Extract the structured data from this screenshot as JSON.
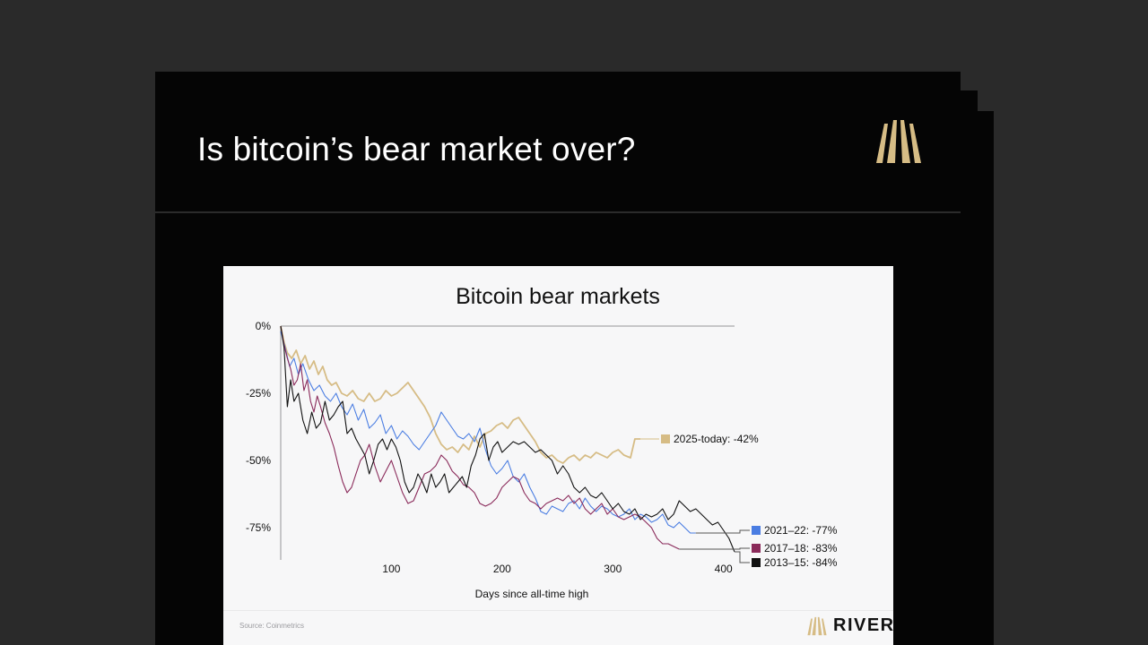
{
  "slide": {
    "title": "Is bitcoin’s bear market over?",
    "accent_color": "#d6bc85"
  },
  "chart_card": {
    "source": "Source: Coinmetrics",
    "brand": "RIVER"
  },
  "chart_data": {
    "type": "line",
    "title": "Bitcoin bear markets",
    "xlabel": "Days since all-time high",
    "ylabel": "",
    "xlim": [
      0,
      410
    ],
    "ylim": [
      -87,
      0
    ],
    "x_ticks": [
      100,
      200,
      300,
      400
    ],
    "x_tick_labels": [
      "100",
      "200",
      "300",
      "400"
    ],
    "y_ticks": [
      0,
      -25,
      -50,
      -75
    ],
    "y_tick_labels": [
      "0%",
      "-25%",
      "-50%",
      "-75%"
    ],
    "grid": false,
    "series": [
      {
        "name": "2025-today: -42%",
        "color": "#d6bc85",
        "x": [
          0,
          3,
          6,
          10,
          14,
          18,
          22,
          26,
          30,
          34,
          38,
          42,
          46,
          50,
          55,
          60,
          65,
          70,
          75,
          80,
          85,
          90,
          95,
          100,
          105,
          110,
          115,
          120,
          125,
          130,
          135,
          140,
          145,
          150,
          155,
          160,
          165,
          170,
          175,
          180,
          185,
          190,
          195,
          200,
          205,
          210,
          215,
          220,
          225,
          230,
          235,
          240,
          245,
          250,
          255,
          260,
          265,
          270,
          275,
          280,
          285,
          290,
          295,
          300,
          305,
          310,
          316,
          320,
          325
        ],
        "values": [
          0,
          -6,
          -10,
          -12,
          -9,
          -14,
          -11,
          -16,
          -13,
          -18,
          -15,
          -20,
          -22,
          -21,
          -25,
          -26,
          -24,
          -27,
          -28,
          -25,
          -28,
          -27,
          -24,
          -26,
          -25,
          -23,
          -21,
          -24,
          -27,
          -30,
          -34,
          -40,
          -44,
          -46,
          -45,
          -47,
          -44,
          -46,
          -41,
          -45,
          -40,
          -39,
          -37,
          -36,
          -38,
          -35,
          -34,
          -37,
          -40,
          -43,
          -47,
          -49,
          -48,
          -50,
          -51,
          -49,
          -48,
          -50,
          -48,
          -49,
          -47,
          -48,
          -49,
          -47,
          -46,
          -48,
          -49,
          -42,
          -42
        ]
      },
      {
        "name": "2021–22: -77%",
        "color": "#4a7de2",
        "x": [
          0,
          4,
          8,
          12,
          16,
          20,
          25,
          30,
          35,
          40,
          45,
          50,
          55,
          60,
          65,
          70,
          75,
          80,
          85,
          90,
          95,
          100,
          105,
          110,
          115,
          120,
          125,
          130,
          135,
          140,
          145,
          150,
          155,
          160,
          165,
          170,
          175,
          180,
          185,
          190,
          195,
          200,
          205,
          210,
          215,
          220,
          225,
          230,
          235,
          240,
          245,
          250,
          255,
          260,
          265,
          270,
          275,
          280,
          285,
          290,
          295,
          300,
          305,
          310,
          315,
          320,
          325,
          330,
          335,
          340,
          345,
          350,
          355,
          360,
          365,
          370,
          375
        ],
        "values": [
          -2,
          -8,
          -15,
          -12,
          -18,
          -14,
          -20,
          -24,
          -22,
          -26,
          -28,
          -25,
          -30,
          -33,
          -29,
          -35,
          -31,
          -38,
          -36,
          -33,
          -40,
          -37,
          -42,
          -39,
          -41,
          -44,
          -46,
          -43,
          -40,
          -37,
          -32,
          -35,
          -38,
          -41,
          -42,
          -40,
          -43,
          -38,
          -46,
          -52,
          -55,
          -53,
          -50,
          -56,
          -58,
          -55,
          -60,
          -64,
          -69,
          -70,
          -67,
          -68,
          -69,
          -66,
          -65,
          -68,
          -64,
          -67,
          -69,
          -67,
          -68,
          -70,
          -71,
          -70,
          -68,
          -72,
          -70,
          -71,
          -73,
          -72,
          -70,
          -74,
          -75,
          -73,
          -75,
          -77,
          -77
        ]
      },
      {
        "name": "2017–18: -83%",
        "color": "#8a2a5a",
        "x": [
          0,
          3,
          6,
          9,
          12,
          15,
          18,
          21,
          24,
          27,
          30,
          33,
          36,
          40,
          44,
          48,
          52,
          56,
          60,
          64,
          68,
          72,
          76,
          80,
          85,
          90,
          95,
          100,
          105,
          110,
          115,
          120,
          125,
          130,
          135,
          140,
          145,
          150,
          155,
          160,
          165,
          170,
          175,
          180,
          185,
          190,
          195,
          200,
          205,
          210,
          215,
          220,
          225,
          230,
          235,
          240,
          245,
          250,
          255,
          260,
          265,
          270,
          275,
          280,
          285,
          290,
          295,
          300,
          305,
          310,
          315,
          320,
          325,
          330,
          335,
          340,
          345,
          350,
          355,
          360
        ],
        "values": [
          0,
          -7,
          -12,
          -16,
          -22,
          -20,
          -14,
          -24,
          -20,
          -28,
          -32,
          -26,
          -30,
          -36,
          -40,
          -45,
          -52,
          -58,
          -62,
          -60,
          -55,
          -50,
          -48,
          -44,
          -52,
          -58,
          -54,
          -50,
          -56,
          -62,
          -66,
          -65,
          -60,
          -55,
          -54,
          -52,
          -48,
          -50,
          -54,
          -56,
          -59,
          -60,
          -62,
          -66,
          -67,
          -66,
          -64,
          -60,
          -58,
          -56,
          -57,
          -62,
          -65,
          -66,
          -68,
          -66,
          -65,
          -64,
          -65,
          -63,
          -66,
          -64,
          -68,
          -70,
          -68,
          -66,
          -70,
          -68,
          -71,
          -72,
          -71,
          -70,
          -71,
          -73,
          -75,
          -79,
          -81,
          -81,
          -82,
          -83
        ]
      },
      {
        "name": "2013–15: -84%",
        "color": "#111111",
        "x": [
          0,
          3,
          6,
          9,
          12,
          16,
          20,
          24,
          28,
          32,
          36,
          40,
          44,
          48,
          52,
          56,
          60,
          64,
          68,
          72,
          76,
          80,
          84,
          88,
          92,
          96,
          100,
          104,
          108,
          112,
          116,
          120,
          124,
          128,
          132,
          136,
          140,
          144,
          148,
          152,
          156,
          160,
          164,
          168,
          172,
          176,
          180,
          184,
          188,
          192,
          196,
          200,
          205,
          210,
          215,
          220,
          225,
          230,
          235,
          240,
          245,
          250,
          255,
          260,
          265,
          270,
          275,
          280,
          285,
          290,
          295,
          300,
          305,
          310,
          315,
          320,
          325,
          330,
          335,
          340,
          345,
          350,
          355,
          360,
          365,
          370,
          375,
          380,
          385,
          390,
          395,
          400,
          405,
          410
        ],
        "values": [
          0,
          -8,
          -30,
          -20,
          -28,
          -25,
          -35,
          -40,
          -32,
          -38,
          -36,
          -28,
          -35,
          -33,
          -30,
          -28,
          -40,
          -38,
          -42,
          -45,
          -48,
          -55,
          -50,
          -44,
          -42,
          -46,
          -42,
          -45,
          -50,
          -58,
          -62,
          -60,
          -55,
          -58,
          -62,
          -55,
          -60,
          -58,
          -55,
          -62,
          -60,
          -58,
          -56,
          -60,
          -52,
          -48,
          -42,
          -40,
          -50,
          -45,
          -43,
          -47,
          -45,
          -43,
          -44,
          -43,
          -45,
          -47,
          -46,
          -48,
          -50,
          -55,
          -52,
          -55,
          -60,
          -62,
          -60,
          -63,
          -64,
          -62,
          -65,
          -68,
          -66,
          -69,
          -70,
          -68,
          -72,
          -70,
          -71,
          -70,
          -68,
          -72,
          -70,
          -65,
          -67,
          -69,
          -68,
          -70,
          -72,
          -74,
          -73,
          -76,
          -79,
          -84
        ]
      }
    ]
  }
}
